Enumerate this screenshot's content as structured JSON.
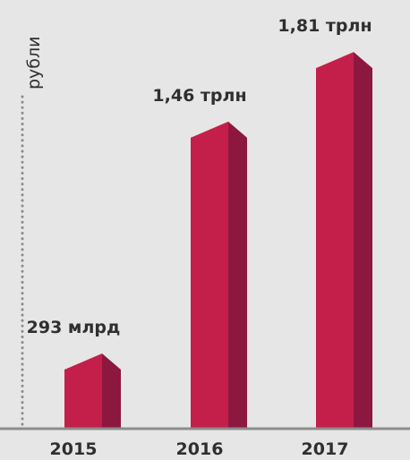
{
  "chart_data": {
    "type": "bar",
    "title": "",
    "xlabel": "",
    "ylabel": "рубли",
    "categories": [
      "2015",
      "2016",
      "2017"
    ],
    "values": [
      0.293,
      1.46,
      1.81
    ],
    "value_unit": "trillion rubles",
    "data_labels": [
      "293 млрд",
      "1,46 трлн",
      "1,81 трлн"
    ],
    "ylim": [
      0,
      1.9
    ],
    "grid": false,
    "legend": "none"
  },
  "colors": {
    "background": "#e6e6e6",
    "bar_front": "#c41f4b",
    "bar_side": "#8c1840",
    "bar_top": "#8e183f",
    "axis": "#8c8c8c",
    "text": "#2f2f2f"
  }
}
